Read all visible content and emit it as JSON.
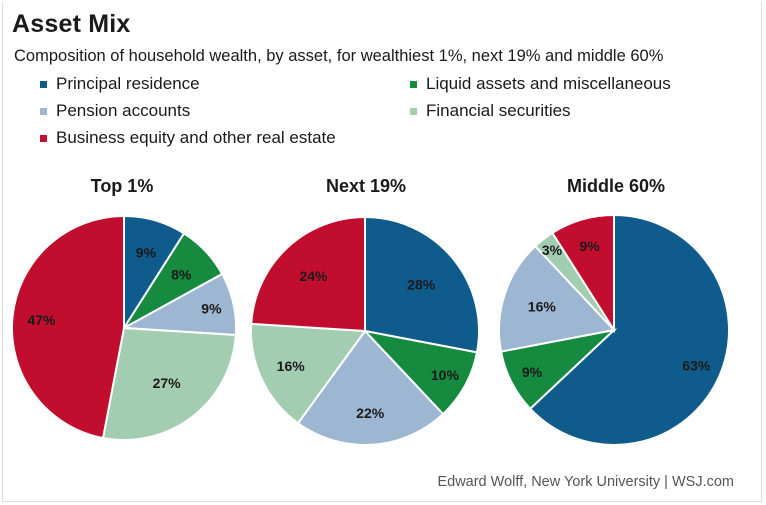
{
  "title": "Asset Mix",
  "subtitle": "Composition of household wealth, by asset, for wealthiest 1%, next 19% and middle 60%",
  "source": "Edward Wolff, New York University  |  WSJ.com",
  "colors": {
    "principal_residence": "#0f5b8c",
    "liquid_assets": "#168a3f",
    "pension": "#9db6d1",
    "financial_securities": "#a3cdb0",
    "business_equity": "#c20e2e"
  },
  "legend": [
    {
      "label": "Principal residence",
      "color": "#0f5b8c"
    },
    {
      "label": "Liquid assets and miscellaneous",
      "color": "#168a3f"
    },
    {
      "label": "Pension accounts",
      "color": "#9db6d1"
    },
    {
      "label": "Financial securities",
      "color": "#a3cdb0"
    },
    {
      "label": "Business equity and other real estate",
      "color": "#c20e2e"
    }
  ],
  "chart_data": [
    {
      "type": "pie",
      "title": "Top 1%",
      "slices": [
        {
          "category": "Principal residence",
          "value": 9,
          "label": "9%",
          "color": "#0f5b8c"
        },
        {
          "category": "Liquid assets and miscellaneous",
          "value": 8,
          "label": "8%",
          "color": "#168a3f"
        },
        {
          "category": "Pension accounts",
          "value": 9,
          "label": "9%",
          "color": "#9db6d1"
        },
        {
          "category": "Financial securities",
          "value": 27,
          "label": "27%",
          "color": "#a3cdb0"
        },
        {
          "category": "Business equity and other real estate",
          "value": 47,
          "label": "47%",
          "color": "#c20e2e"
        }
      ]
    },
    {
      "type": "pie",
      "title": "Next 19%",
      "slices": [
        {
          "category": "Principal residence",
          "value": 28,
          "label": "28%",
          "color": "#0f5b8c"
        },
        {
          "category": "Liquid assets and miscellaneous",
          "value": 10,
          "label": "10%",
          "color": "#168a3f"
        },
        {
          "category": "Pension accounts",
          "value": 22,
          "label": "22%",
          "color": "#9db6d1"
        },
        {
          "category": "Financial securities",
          "value": 16,
          "label": "16%",
          "color": "#a3cdb0"
        },
        {
          "category": "Business equity and other real estate",
          "value": 24,
          "label": "24%",
          "color": "#c20e2e"
        }
      ]
    },
    {
      "type": "pie",
      "title": "Middle 60%",
      "slices": [
        {
          "category": "Principal residence",
          "value": 63,
          "label": "63%",
          "color": "#0f5b8c"
        },
        {
          "category": "Liquid assets and miscellaneous",
          "value": 9,
          "label": "9%",
          "color": "#168a3f"
        },
        {
          "category": "Pension accounts",
          "value": 16,
          "label": "16%",
          "color": "#9db6d1"
        },
        {
          "category": "Financial securities",
          "value": 3,
          "label": "3%",
          "color": "#a3cdb0"
        },
        {
          "category": "Business equity and other real estate",
          "value": 9,
          "label": "9%",
          "color": "#c20e2e"
        }
      ]
    }
  ]
}
